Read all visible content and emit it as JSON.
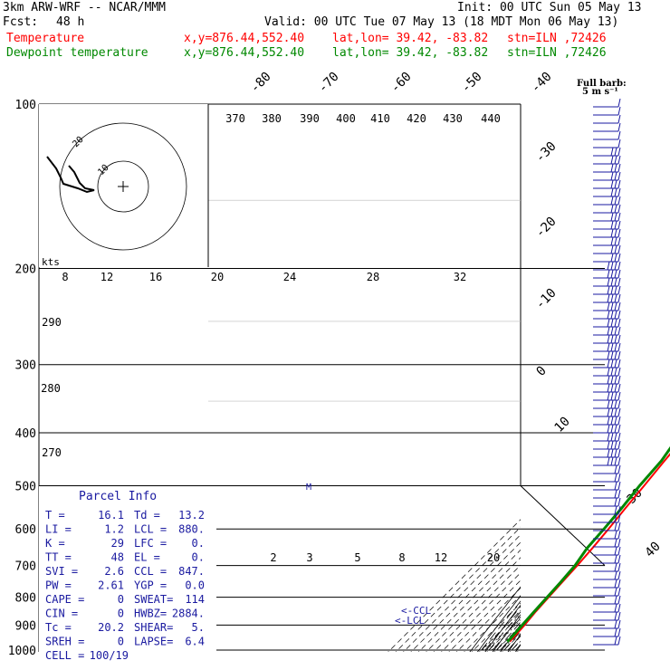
{
  "header": {
    "model": "3km ARW-WRF -- NCAR/MMM",
    "init": "Init: 00 UTC Sun 05 May 13",
    "fcst_label": "Fcst:",
    "fcst_value": "48 h",
    "valid": "Valid: 00 UTC Tue 07 May 13 (18 MDT Mon 06 May 13)"
  },
  "series": [
    {
      "name": "Temperature",
      "xy": "x,y=876.44,552.40",
      "latlon": "lat,lon= 39.42, -83.82",
      "stn": "stn=ILN ,72426",
      "color": "#ff0000"
    },
    {
      "name": "Dewpoint temperature",
      "xy": "x,y=876.44,552.40",
      "latlon": "lat,lon= 39.42, -83.82",
      "stn": "stn=ILN ,72426",
      "color": "#008800"
    }
  ],
  "barb_legend": {
    "line1": "Full barb:",
    "line2": "5 m s⁻¹"
  },
  "hodograph": {
    "units": "kts",
    "ring_labels": [
      "10",
      "20"
    ]
  },
  "parcel_info": {
    "title": "Parcel Info",
    "rows": [
      [
        "T  =",
        "16.1",
        "Td =",
        "13.2"
      ],
      [
        "LI =",
        "1.2",
        "LCL =",
        "880."
      ],
      [
        "K  =",
        "29",
        "LFC =",
        "0."
      ],
      [
        "TT =",
        "48",
        "EL  =",
        "0."
      ],
      [
        "SVI =",
        "2.6",
        "CCL =",
        "847."
      ],
      [
        "PW =",
        "2.61",
        "YGP =",
        "0.0"
      ],
      [
        "CAPE =",
        "0",
        "SWEAT=",
        "114"
      ],
      [
        "CIN =",
        "0",
        "HWBZ=",
        "2884."
      ],
      [
        "Tc =",
        "20.2",
        "SHEAR=",
        "5."
      ],
      [
        "SREH =",
        "0",
        "LAPSE=",
        "6.4"
      ],
      [
        "CELL =",
        "100/19",
        "",
        ""
      ]
    ]
  },
  "annotations": {
    "ccl": "<-CCL",
    "lcl": "<-LCL",
    "m": "M"
  },
  "colors": {
    "temperature": "#ff0000",
    "dewpoint": "#008800",
    "barbs": "#1a1aa0"
  },
  "chart_data": {
    "type": "line",
    "title": "",
    "y_axis": "pressure (hPa)",
    "y_scale": "log",
    "ylim": [
      1000,
      100
    ],
    "pressure_ticks": [
      100,
      200,
      300,
      400,
      500,
      600,
      700,
      800,
      900,
      1000
    ],
    "isotherm_labels": [
      -80,
      -70,
      -60,
      -50,
      -40,
      -30,
      -20,
      -10,
      0,
      10,
      20,
      30,
      40
    ],
    "theta_labels": [
      {
        "v": "370",
        "p": 100,
        "t": -51
      },
      {
        "v": "380",
        "p": 100,
        "t": -42
      },
      {
        "v": "390",
        "p": 100,
        "t": -33
      },
      {
        "v": "400",
        "p": 100,
        "t": -25
      },
      {
        "v": "410",
        "p": 100,
        "t": -16
      },
      {
        "v": "420",
        "p": 100,
        "t": -7
      },
      {
        "v": "430",
        "p": 100,
        "t": 1
      },
      {
        "v": "440",
        "p": 100,
        "t": 10
      },
      {
        "v": "290",
        "p": 250,
        "t": -60
      },
      {
        "v": "280",
        "p": 335,
        "t": -62
      },
      {
        "v": "270",
        "p": 450,
        "t": -67
      }
    ],
    "mixing_ratio_labels": [
      {
        "v": "2",
        "p": 700,
        "t": -8
      },
      {
        "v": "3",
        "p": 700,
        "t": -3
      },
      {
        "v": "5",
        "p": 700,
        "t": 3
      },
      {
        "v": "8",
        "p": 700,
        "t": 9
      },
      {
        "v": "12",
        "p": 700,
        "t": 14
      },
      {
        "v": "20",
        "p": 700,
        "t": 21
      }
    ],
    "hodo_speed_labels": [
      "8",
      "12",
      "16",
      "20",
      "24",
      "28",
      "32"
    ],
    "series": [
      {
        "name": "Temperature",
        "color": "#ff0000",
        "points": [
          [
            100,
            -64
          ],
          [
            110,
            -62
          ],
          [
            130,
            -61
          ],
          [
            140,
            -59
          ],
          [
            150,
            -57
          ],
          [
            175,
            -57
          ],
          [
            200,
            -58
          ],
          [
            220,
            -56
          ],
          [
            250,
            -53
          ],
          [
            300,
            -43
          ],
          [
            350,
            -32
          ],
          [
            400,
            -24
          ],
          [
            450,
            -18
          ],
          [
            500,
            -12
          ],
          [
            550,
            -7
          ],
          [
            600,
            -2
          ],
          [
            650,
            2
          ],
          [
            700,
            5
          ],
          [
            750,
            7
          ],
          [
            800,
            9
          ],
          [
            850,
            11
          ],
          [
            900,
            14
          ],
          [
            950,
            16
          ],
          [
            965,
            16.1
          ]
        ]
      },
      {
        "name": "Dewpoint temperature",
        "color": "#008800",
        "points": [
          [
            100,
            -87
          ],
          [
            130,
            -87
          ],
          [
            160,
            -88
          ],
          [
            200,
            -89
          ],
          [
            250,
            -87
          ],
          [
            300,
            -79
          ],
          [
            330,
            -78
          ],
          [
            350,
            -66
          ],
          [
            400,
            -33
          ],
          [
            450,
            -22
          ],
          [
            500,
            -18
          ],
          [
            550,
            -12
          ],
          [
            600,
            -8
          ],
          [
            650,
            -5
          ],
          [
            700,
            2
          ],
          [
            750,
            5
          ],
          [
            800,
            7
          ],
          [
            850,
            9
          ],
          [
            900,
            11
          ],
          [
            950,
            13
          ],
          [
            965,
            13.2
          ]
        ]
      }
    ]
  }
}
